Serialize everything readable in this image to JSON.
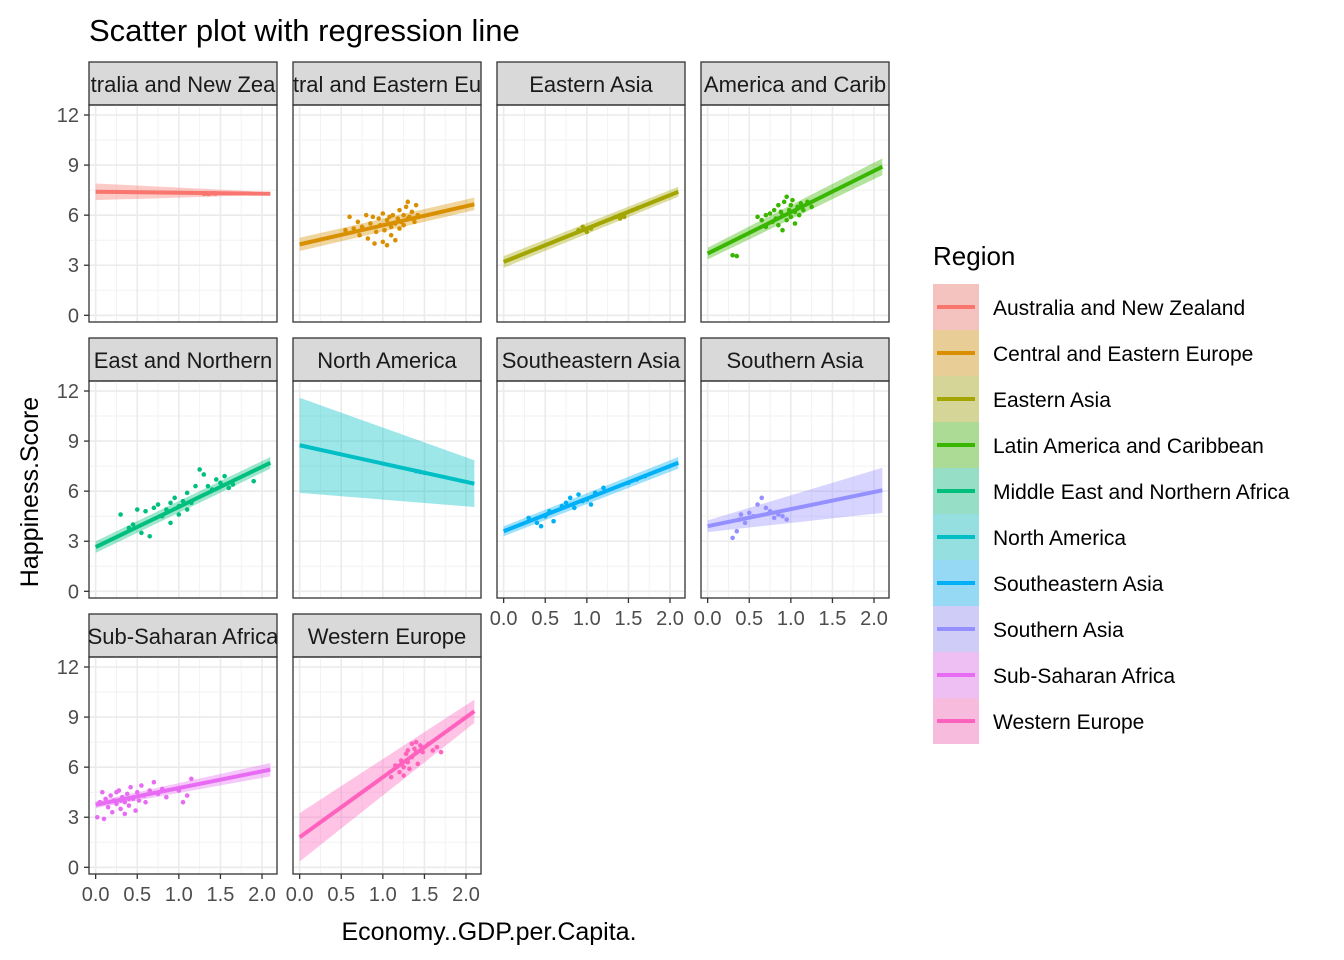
{
  "chart_data": {
    "type": "scatter",
    "title": "Scatter plot with regression line",
    "xlabel": "Economy..GDP.per.Capita.",
    "ylabel": "Happiness.Score",
    "xlim": [
      -0.08,
      2.18
    ],
    "ylim": [
      -0.4,
      12.6
    ],
    "x_ticks": [
      "0.0",
      "0.5",
      "1.0",
      "1.5",
      "2.0"
    ],
    "x_tick_values": [
      0,
      0.5,
      1,
      1.5,
      2
    ],
    "y_ticks": [
      "0",
      "3",
      "6",
      "9",
      "12"
    ],
    "y_tick_values": [
      0,
      3,
      6,
      9,
      12
    ],
    "grid": true,
    "facet_by": "Region",
    "legend": {
      "title": "Region",
      "position": "right"
    },
    "series": [
      {
        "name": "Australia and New Zealand",
        "strip_label": "tralia and New Zea",
        "color": "#F8766D",
        "fit": {
          "x": [
            0,
            2.1
          ],
          "y": [
            7.4,
            7.28
          ]
        },
        "band": {
          "lower": [
            6.9,
            7.22
          ],
          "upper": [
            7.9,
            7.38
          ]
        },
        "points": [
          [
            1.3,
            7.28
          ],
          [
            1.4,
            7.31
          ],
          [
            1.44,
            7.29
          ],
          [
            1.33,
            7.3
          ],
          [
            1.36,
            7.27
          ],
          [
            1.42,
            7.31
          ]
        ]
      },
      {
        "name": "Central and Eastern Europe",
        "strip_label": "tral and Eastern Eu",
        "color": "#D89000",
        "fit": {
          "x": [
            0,
            2.1
          ],
          "y": [
            4.25,
            6.65
          ]
        },
        "band": {
          "lower": [
            3.85,
            6.3
          ],
          "upper": [
            4.65,
            7.05
          ]
        },
        "points": [
          [
            0.55,
            5.1
          ],
          [
            0.6,
            5.9
          ],
          [
            0.65,
            5.2
          ],
          [
            0.7,
            5.6
          ],
          [
            0.72,
            4.8
          ],
          [
            0.75,
            5.3
          ],
          [
            0.8,
            6.0
          ],
          [
            0.82,
            4.6
          ],
          [
            0.85,
            5.5
          ],
          [
            0.88,
            5.9
          ],
          [
            0.9,
            4.3
          ],
          [
            0.92,
            5.0
          ],
          [
            0.95,
            5.8
          ],
          [
            0.97,
            5.4
          ],
          [
            1.0,
            4.4
          ],
          [
            1.0,
            6.1
          ],
          [
            1.02,
            5.1
          ],
          [
            1.05,
            5.7
          ],
          [
            1.05,
            4.2
          ],
          [
            1.08,
            5.9
          ],
          [
            1.1,
            5.3
          ],
          [
            1.1,
            4.8
          ],
          [
            1.12,
            6.0
          ],
          [
            1.15,
            5.5
          ],
          [
            1.15,
            4.5
          ],
          [
            1.18,
            5.8
          ],
          [
            1.2,
            6.3
          ],
          [
            1.2,
            5.2
          ],
          [
            1.22,
            5.6
          ],
          [
            1.25,
            6.0
          ],
          [
            1.25,
            5.4
          ],
          [
            1.28,
            6.5
          ],
          [
            1.3,
            5.8
          ],
          [
            1.3,
            6.8
          ],
          [
            1.32,
            5.9
          ],
          [
            1.35,
            6.2
          ],
          [
            1.38,
            5.6
          ],
          [
            1.4,
            6.6
          ],
          [
            1.42,
            6.0
          ]
        ]
      },
      {
        "name": "Eastern Asia",
        "strip_label": "Eastern Asia",
        "color": "#A3A500",
        "fit": {
          "x": [
            0,
            2.1
          ],
          "y": [
            3.2,
            7.4
          ]
        },
        "band": {
          "lower": [
            2.85,
            7.1
          ],
          "upper": [
            3.55,
            7.7
          ]
        },
        "points": [
          [
            0.9,
            5.1
          ],
          [
            0.95,
            5.3
          ],
          [
            1.0,
            5.0
          ],
          [
            1.05,
            5.2
          ],
          [
            1.0,
            5.2
          ],
          [
            1.35,
            5.9
          ],
          [
            1.4,
            6.0
          ],
          [
            1.45,
            5.9
          ],
          [
            1.4,
            5.8
          ],
          [
            1.6,
            6.4
          ],
          [
            1.55,
            6.3
          ]
        ]
      },
      {
        "name": "Latin America and Caribbean",
        "strip_label": "America and Carib",
        "color": "#39B600",
        "fit": {
          "x": [
            0,
            2.1
          ],
          "y": [
            3.7,
            8.9
          ]
        },
        "band": {
          "lower": [
            3.35,
            8.4
          ],
          "upper": [
            4.05,
            9.4
          ]
        },
        "points": [
          [
            0.3,
            3.6
          ],
          [
            0.35,
            3.55
          ],
          [
            0.6,
            5.9
          ],
          [
            0.65,
            5.7
          ],
          [
            0.7,
            6.0
          ],
          [
            0.7,
            5.3
          ],
          [
            0.75,
            6.1
          ],
          [
            0.78,
            5.6
          ],
          [
            0.8,
            6.3
          ],
          [
            0.82,
            5.8
          ],
          [
            0.85,
            5.4
          ],
          [
            0.85,
            6.6
          ],
          [
            0.88,
            6.2
          ],
          [
            0.9,
            5.1
          ],
          [
            0.9,
            6.0
          ],
          [
            0.92,
            6.8
          ],
          [
            0.95,
            5.7
          ],
          [
            0.95,
            7.1
          ],
          [
            0.98,
            6.3
          ],
          [
            1.0,
            5.9
          ],
          [
            1.0,
            6.6
          ],
          [
            1.02,
            6.9
          ],
          [
            1.05,
            6.2
          ],
          [
            1.05,
            5.5
          ],
          [
            1.08,
            6.5
          ],
          [
            1.1,
            6.0
          ],
          [
            1.12,
            6.7
          ],
          [
            1.15,
            6.3
          ],
          [
            1.2,
            6.8
          ],
          [
            1.25,
            6.5
          ]
        ]
      },
      {
        "name": "Middle East and Northern Africa",
        "strip_label": "East and Northern",
        "color": "#00BF7D",
        "fit": {
          "x": [
            0,
            2.1
          ],
          "y": [
            2.65,
            7.7
          ]
        },
        "band": {
          "lower": [
            2.3,
            7.35
          ],
          "upper": [
            3.0,
            8.05
          ]
        },
        "points": [
          [
            0.3,
            4.6
          ],
          [
            0.4,
            3.8
          ],
          [
            0.45,
            4.0
          ],
          [
            0.5,
            4.9
          ],
          [
            0.55,
            3.5
          ],
          [
            0.6,
            4.8
          ],
          [
            0.65,
            3.3
          ],
          [
            0.7,
            5.0
          ],
          [
            0.75,
            5.2
          ],
          [
            0.8,
            4.5
          ],
          [
            0.85,
            4.9
          ],
          [
            0.9,
            5.3
          ],
          [
            0.9,
            4.1
          ],
          [
            0.95,
            5.6
          ],
          [
            1.0,
            5.1
          ],
          [
            1.0,
            4.6
          ],
          [
            1.05,
            5.4
          ],
          [
            1.1,
            5.9
          ],
          [
            1.1,
            4.9
          ],
          [
            1.15,
            5.3
          ],
          [
            1.2,
            6.3
          ],
          [
            1.25,
            7.3
          ],
          [
            1.3,
            7.0
          ],
          [
            1.35,
            6.3
          ],
          [
            1.4,
            6.1
          ],
          [
            1.45,
            6.7
          ],
          [
            1.5,
            6.5
          ],
          [
            1.55,
            6.9
          ],
          [
            1.6,
            6.2
          ],
          [
            1.65,
            6.4
          ],
          [
            1.9,
            6.6
          ]
        ]
      },
      {
        "name": "North America",
        "strip_label": "North America",
        "color": "#00BFC4",
        "fit": {
          "x": [
            0,
            2.1
          ],
          "y": [
            8.75,
            6.45
          ]
        },
        "band": {
          "lower": [
            5.9,
            5.05
          ],
          "upper": [
            11.6,
            7.85
          ]
        },
        "points": [
          [
            1.4,
            7.2
          ],
          [
            1.5,
            7.1
          ],
          [
            1.45,
            7.15
          ]
        ]
      },
      {
        "name": "Southeastern Asia",
        "strip_label": "Southeastern Asia",
        "color": "#00B0F6",
        "fit": {
          "x": [
            0,
            2.1
          ],
          "y": [
            3.6,
            7.7
          ]
        },
        "band": {
          "lower": [
            3.3,
            7.35
          ],
          "upper": [
            3.9,
            8.05
          ]
        },
        "points": [
          [
            0.3,
            4.4
          ],
          [
            0.4,
            4.1
          ],
          [
            0.45,
            3.9
          ],
          [
            0.5,
            4.5
          ],
          [
            0.55,
            4.8
          ],
          [
            0.6,
            4.2
          ],
          [
            0.7,
            5.1
          ],
          [
            0.75,
            5.3
          ],
          [
            0.8,
            5.6
          ],
          [
            0.85,
            5.0
          ],
          [
            0.9,
            5.8
          ],
          [
            0.95,
            5.4
          ],
          [
            1.0,
            5.5
          ],
          [
            1.05,
            5.2
          ],
          [
            1.1,
            5.9
          ],
          [
            1.2,
            6.2
          ],
          [
            1.5,
            6.5
          ],
          [
            1.6,
            6.7
          ],
          [
            1.7,
            6.9
          ]
        ]
      },
      {
        "name": "Southern Asia",
        "strip_label": "Southern Asia",
        "color": "#9590FF",
        "fit": {
          "x": [
            0,
            2.1
          ],
          "y": [
            3.9,
            6.05
          ]
        },
        "band": {
          "lower": [
            3.55,
            4.7
          ],
          "upper": [
            4.25,
            7.4
          ]
        },
        "points": [
          [
            0.3,
            3.2
          ],
          [
            0.35,
            3.6
          ],
          [
            0.38,
            4.3
          ],
          [
            0.4,
            4.6
          ],
          [
            0.45,
            4.1
          ],
          [
            0.5,
            4.7
          ],
          [
            0.55,
            4.5
          ],
          [
            0.6,
            5.2
          ],
          [
            0.65,
            5.6
          ],
          [
            0.7,
            5.0
          ],
          [
            0.75,
            4.8
          ],
          [
            0.8,
            4.4
          ],
          [
            0.85,
            4.6
          ],
          [
            0.9,
            4.5
          ],
          [
            0.95,
            4.3
          ]
        ]
      },
      {
        "name": "Sub-Saharan Africa",
        "strip_label": "Sub-Saharan Africa",
        "color": "#E76BF3",
        "fit": {
          "x": [
            0,
            2.1
          ],
          "y": [
            3.75,
            5.85
          ]
        },
        "band": {
          "lower": [
            3.55,
            5.45
          ],
          "upper": [
            3.95,
            6.25
          ]
        },
        "points": [
          [
            0.02,
            3.0
          ],
          [
            0.05,
            3.9
          ],
          [
            0.08,
            4.5
          ],
          [
            0.1,
            2.9
          ],
          [
            0.12,
            4.1
          ],
          [
            0.15,
            3.6
          ],
          [
            0.18,
            4.3
          ],
          [
            0.2,
            3.3
          ],
          [
            0.22,
            4.0
          ],
          [
            0.25,
            3.8
          ],
          [
            0.28,
            4.6
          ],
          [
            0.3,
            3.5
          ],
          [
            0.32,
            4.2
          ],
          [
            0.35,
            3.9
          ],
          [
            0.38,
            4.4
          ],
          [
            0.4,
            3.7
          ],
          [
            0.42,
            4.8
          ],
          [
            0.45,
            4.1
          ],
          [
            0.48,
            3.4
          ],
          [
            0.5,
            4.5
          ],
          [
            0.52,
            4.0
          ],
          [
            0.55,
            4.9
          ],
          [
            0.58,
            4.3
          ],
          [
            0.6,
            3.9
          ],
          [
            0.65,
            4.6
          ],
          [
            0.7,
            5.1
          ],
          [
            0.75,
            4.4
          ],
          [
            0.8,
            4.7
          ],
          [
            0.85,
            4.2
          ],
          [
            1.0,
            4.6
          ],
          [
            1.05,
            3.9
          ],
          [
            1.1,
            4.3
          ],
          [
            1.15,
            5.3
          ],
          [
            0.35,
            3.2
          ],
          [
            0.25,
            4.5
          ],
          [
            0.4,
            4.1
          ],
          [
            0.3,
            4.0
          ]
        ]
      },
      {
        "name": "Western Europe",
        "strip_label": "Western Europe",
        "color": "#FF62BC",
        "fit": {
          "x": [
            0,
            2.1
          ],
          "y": [
            1.8,
            9.35
          ]
        },
        "band": {
          "lower": [
            0.35,
            8.65
          ],
          "upper": [
            3.25,
            10.05
          ]
        },
        "points": [
          [
            1.1,
            5.4
          ],
          [
            1.15,
            6.1
          ],
          [
            1.2,
            5.7
          ],
          [
            1.22,
            6.4
          ],
          [
            1.25,
            5.5
          ],
          [
            1.28,
            6.8
          ],
          [
            1.3,
            6.3
          ],
          [
            1.3,
            7.0
          ],
          [
            1.32,
            5.9
          ],
          [
            1.35,
            7.4
          ],
          [
            1.35,
            6.6
          ],
          [
            1.38,
            7.1
          ],
          [
            1.4,
            6.9
          ],
          [
            1.4,
            7.5
          ],
          [
            1.42,
            6.2
          ],
          [
            1.45,
            7.3
          ],
          [
            1.48,
            6.9
          ],
          [
            1.5,
            7.2
          ],
          [
            1.55,
            7.4
          ],
          [
            1.6,
            7.0
          ],
          [
            1.65,
            7.2
          ],
          [
            1.7,
            6.9
          ],
          [
            1.25,
            6.0
          ],
          [
            1.45,
            7.0
          ]
        ]
      }
    ]
  }
}
